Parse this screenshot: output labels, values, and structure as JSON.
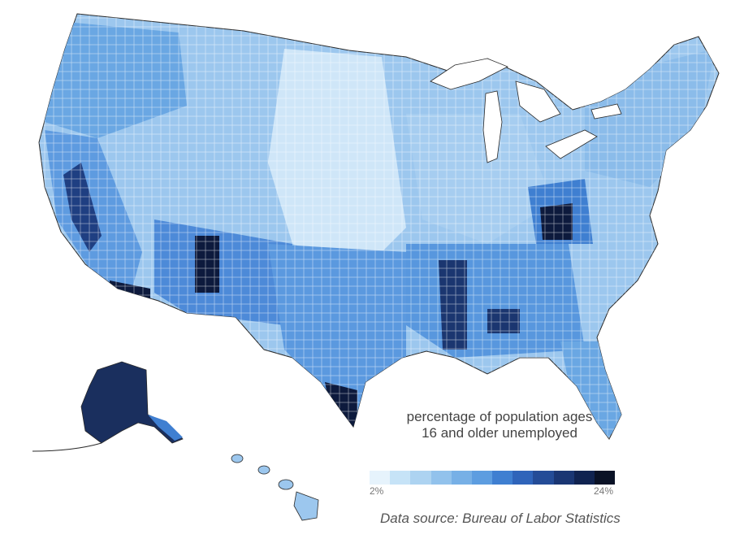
{
  "map": {
    "region": "United States counties",
    "legend_title": "percentage of population ages 16 and older unemployed",
    "legend_min_label": "2%",
    "legend_max_label": "24%",
    "legend_colors": [
      "#e6f3fc",
      "#c6e3f7",
      "#add3f1",
      "#92c2ec",
      "#77b0e6",
      "#5d9de0",
      "#3f7fd1",
      "#2f64ba",
      "#244c97",
      "#1a3673",
      "#102350",
      "#0a1226"
    ],
    "source_note": "Data source: Bureau of Labor Statistics",
    "highlighted_regions": [
      "Alaska",
      "California Central Valley",
      "Arizona / New Mexico",
      "Mississippi Delta",
      "Appalachian Kentucky",
      "South Texas border"
    ]
  }
}
